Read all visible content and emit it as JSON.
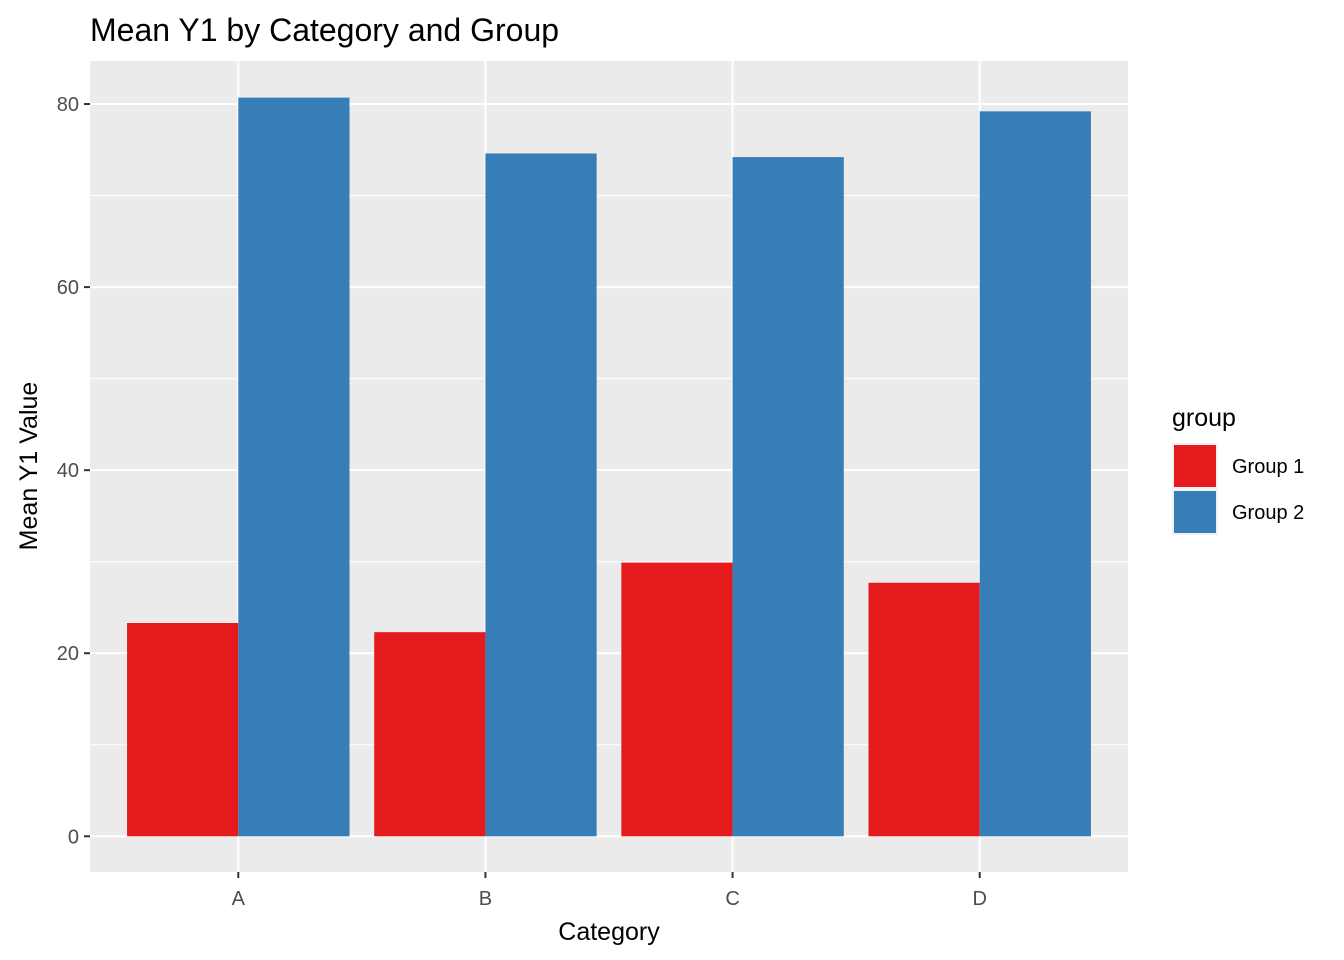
{
  "chart_data": {
    "type": "bar",
    "title": "Mean Y1 by Category and Group",
    "xlabel": "Category",
    "ylabel": "Mean Y1 Value",
    "categories": [
      "A",
      "B",
      "C",
      "D"
    ],
    "series": [
      {
        "name": "Group 1",
        "color": "#E41A1C",
        "values": [
          23.3,
          22.3,
          29.9,
          27.7
        ]
      },
      {
        "name": "Group 2",
        "color": "#377EB8",
        "values": [
          80.7,
          74.6,
          74.2,
          79.2
        ]
      }
    ],
    "ylim": [
      -3.9,
      84.7
    ],
    "yticks": [
      0,
      20,
      40,
      60,
      80
    ],
    "yticks_labels": [
      "0",
      "20",
      "40",
      "60",
      "80"
    ],
    "grid": true,
    "panel_background": "#EBEBEB",
    "grid_color": "#FFFFFF",
    "legend": {
      "title": "group",
      "placement": "right"
    }
  }
}
